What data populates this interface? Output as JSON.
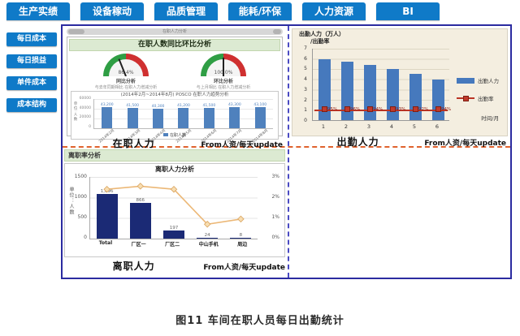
{
  "tabs": [
    "生产实绩",
    "设备稼动",
    "品质管理",
    "能耗/环保",
    "人力资源",
    "BI"
  ],
  "sidebar": {
    "items": [
      "每日成本",
      "每日损益",
      "单件成本",
      "成本结构"
    ]
  },
  "caption": "图11  车间在职人员每日出勤统计",
  "colors": {
    "tab_blue": "#0f7ac8",
    "border_navy": "#2b2ba0",
    "divider_orange": "#e0622e",
    "bar_steel_blue": "#4f81bd",
    "bar_navy": "#1b2a75",
    "rate_red": "#c0392b",
    "line_tan": "#ecb877",
    "header_green": "#dcead2",
    "chart_cream": "#f4eee0"
  },
  "zaizhi_panel": {
    "titlebar": "在职人力分析",
    "header": "在职人数同比环比分析",
    "gauges": [
      {
        "value": "86.4%",
        "caption": "同比分析",
        "note": "与去年同期相比 在职人力增减分析",
        "needle_deg": -22
      },
      {
        "value": "100.0%",
        "caption": "环比分析",
        "note": "与上月相比 在职人力增减分析",
        "needle_deg": 0
      }
    ],
    "footer": {
      "label": "在职人力",
      "source": "From人资/每天update"
    }
  },
  "chuqin_panel": {
    "title_line1": "出勤人力（万人）",
    "title_line2": "/出勤率",
    "xaxis_label": "时间/月",
    "legend": [
      "出勤人力",
      "出勤率"
    ],
    "footer": {
      "label": "出勤人力",
      "source": "From人资/每天update"
    }
  },
  "lizhi_panel": {
    "header": "离职率分析",
    "title": "离职人力分析",
    "y_label": "单位：人数",
    "footer": {
      "label": "离职人力",
      "source": "From人资/每天update"
    }
  },
  "chart_data": [
    {
      "id": "zaizhi_trend",
      "type": "bar",
      "title": "(2014年2月~2014年8月) POSCO 在职人力趋势分析",
      "categories": [
        "2014年2月",
        "2014年3月",
        "2014年4月",
        "2014年5月",
        "2014年6月",
        "2014年7月",
        "2014年8月"
      ],
      "values": [
        43200,
        41500,
        40300,
        41200,
        41500,
        43300,
        43100
      ],
      "ylim": [
        0,
        60000
      ],
      "yticks": [
        "60000",
        "40000",
        "20000",
        "0"
      ],
      "ylabel": "单位:人数",
      "legend": [
        "在职人数"
      ],
      "grid": true,
      "legend_position": "bottom"
    },
    {
      "id": "attendance",
      "type": "bar+line",
      "title": "出勤人力（万人）/出勤率",
      "categories": [
        "1",
        "2",
        "3",
        "4",
        "5",
        "6"
      ],
      "series": [
        {
          "name": "出勤人力",
          "type": "bar",
          "values": [
            6,
            5.7,
            5.4,
            5,
            4.5,
            4
          ]
        },
        {
          "name": "出勤率",
          "type": "line",
          "axis_value": 1,
          "labels": [
            "95%",
            "96%",
            "94%",
            "93%",
            "92%",
            "94%"
          ]
        }
      ],
      "ylim": [
        0,
        7
      ],
      "yticks": [
        "7",
        "6",
        "5",
        "4",
        "3",
        "2",
        "1",
        "0"
      ],
      "xlabel": "时间/月",
      "grid": true,
      "legend_position": "right"
    },
    {
      "id": "attrition",
      "type": "bar+line",
      "title": "离职人力分析",
      "categories": [
        "Total",
        "厂区一",
        "厂区二",
        "中山手机",
        "周边"
      ],
      "series": [
        {
          "name": "离职人数",
          "type": "bar",
          "values": [
            1096,
            866,
            197,
            24,
            8
          ]
        },
        {
          "name": "离职率",
          "type": "line",
          "values_pct": [
            2.4,
            2.55,
            2.4,
            0.7,
            0.95
          ]
        }
      ],
      "ylim_left": [
        0,
        1500
      ],
      "yticks_left": [
        "1500",
        "1000",
        "500",
        "0"
      ],
      "ylim_right_pct": [
        0,
        3
      ],
      "yticks_right": [
        "3%",
        "2%",
        "1%",
        "0%"
      ],
      "ylabel": "单位：人数",
      "grid": true
    }
  ]
}
